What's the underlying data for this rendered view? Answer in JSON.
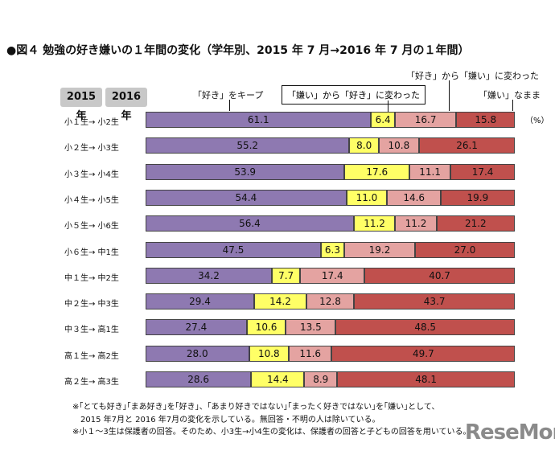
{
  "chart_data": {
    "type": "bar",
    "stacked": true,
    "orientation": "horizontal",
    "title": "●図４ 勉強の好き嫌いの１年間の変化（学年別、2015 年 7 月→2016 年 7 月の１年間）",
    "column_headers": [
      "2015 年",
      "2016 年"
    ],
    "unit": "（%）",
    "categories": [
      "小１生→ 小2生",
      "小２生→ 小3生",
      "小３生→ 小4生",
      "小４生→ 小5生",
      "小５生→ 小6生",
      "小６生→ 中1生",
      "中１生→ 中2生",
      "中２生→ 中3生",
      "中３生→ 高1生",
      "高１生→ 高2生",
      "高２生→ 高3生"
    ],
    "series": [
      {
        "name": "「好き」をキープ",
        "color": "#8e79b1",
        "values": [
          61.1,
          55.2,
          53.9,
          54.4,
          56.4,
          47.5,
          34.2,
          29.4,
          27.4,
          28.0,
          28.6
        ]
      },
      {
        "name": "「嫌い」から「好き」に変わった",
        "color": "#ffff66",
        "values": [
          6.4,
          8.0,
          17.6,
          11.0,
          11.2,
          6.3,
          7.7,
          14.2,
          10.6,
          10.8,
          14.4
        ]
      },
      {
        "name": "「好き」から「嫌い」に変わった",
        "color": "#e4a3a1",
        "values": [
          16.7,
          10.8,
          11.1,
          14.6,
          11.2,
          19.2,
          17.4,
          12.8,
          13.5,
          11.6,
          8.9
        ]
      },
      {
        "name": "「嫌い」なまま",
        "color": "#c0504d",
        "values": [
          15.8,
          26.1,
          17.4,
          19.9,
          21.2,
          27.0,
          40.7,
          43.7,
          48.5,
          49.7,
          48.1
        ]
      }
    ],
    "xlim": [
      0,
      100
    ]
  },
  "notes": [
    "※｢とても好き｣｢まあ好き｣を｢好き｣、｢あまり好きではない｣｢まったく好きではない｣を｢嫌い｣として、",
    "　2015 年7月と 2016 年7月の変化を示している。無回答・不明の人は除いている。",
    "※小１～3生は保護者の回答。そのため、小3生→小4生の変化は、保護者の回答と子どもの回答を用いている。"
  ],
  "logo": "ReseMom"
}
